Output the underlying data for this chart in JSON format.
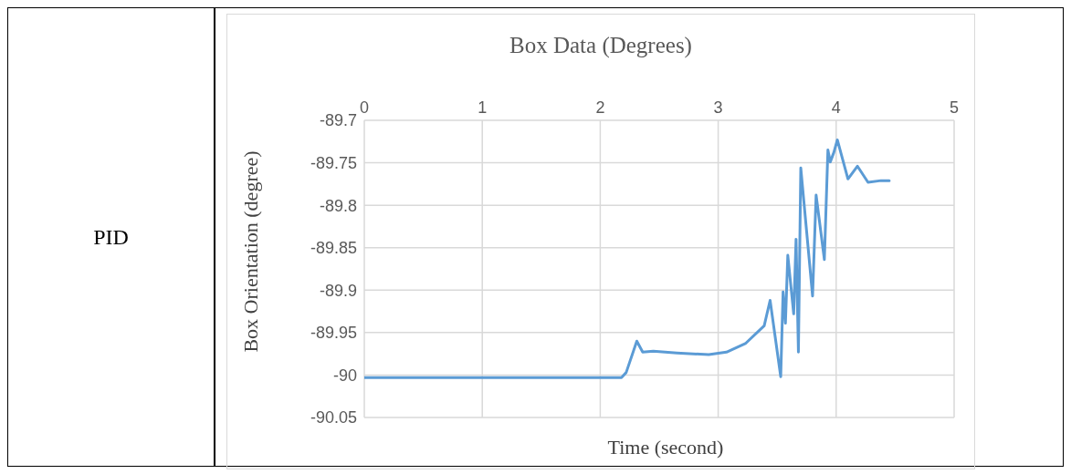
{
  "chart_data": {
    "type": "line",
    "title": "Box Data (Degrees)",
    "xlabel": "Time (second)",
    "ylabel": "Box Orientation (degree)",
    "annotations": [
      "PID"
    ],
    "xlim": [
      0,
      5
    ],
    "xticks": [
      0,
      1,
      2,
      3,
      4,
      5
    ],
    "ylim": [
      -90.05,
      -89.7
    ],
    "yticks": [
      -90.05,
      -90,
      -89.95,
      -89.9,
      -89.85,
      -89.8,
      -89.75,
      -89.7
    ],
    "grid": true,
    "legend": false,
    "marker": "none",
    "line_style": "solid",
    "series": [
      {
        "color": "#5b9bd5",
        "x": [
          0,
          2.18,
          2.22,
          2.31,
          2.36,
          2.45,
          2.65,
          2.92,
          3.07,
          3.23,
          3.39,
          3.44,
          3.53,
          3.55,
          3.57,
          3.59,
          3.64,
          3.66,
          3.68,
          3.7,
          3.8,
          3.83,
          3.9,
          3.93,
          3.95,
          3.98,
          4.01,
          4.1,
          4.18,
          4.27,
          4.38,
          4.45
        ],
        "values": [
          -90.003,
          -90.003,
          -89.997,
          -89.96,
          -89.973,
          -89.972,
          -89.974,
          -89.976,
          -89.973,
          -89.963,
          -89.942,
          -89.912,
          -90.002,
          -89.902,
          -89.939,
          -89.859,
          -89.928,
          -89.84,
          -89.973,
          -89.756,
          -89.907,
          -89.788,
          -89.864,
          -89.735,
          -89.749,
          -89.738,
          -89.723,
          -89.769,
          -89.754,
          -89.773,
          -89.771,
          -89.771
        ]
      }
    ]
  }
}
